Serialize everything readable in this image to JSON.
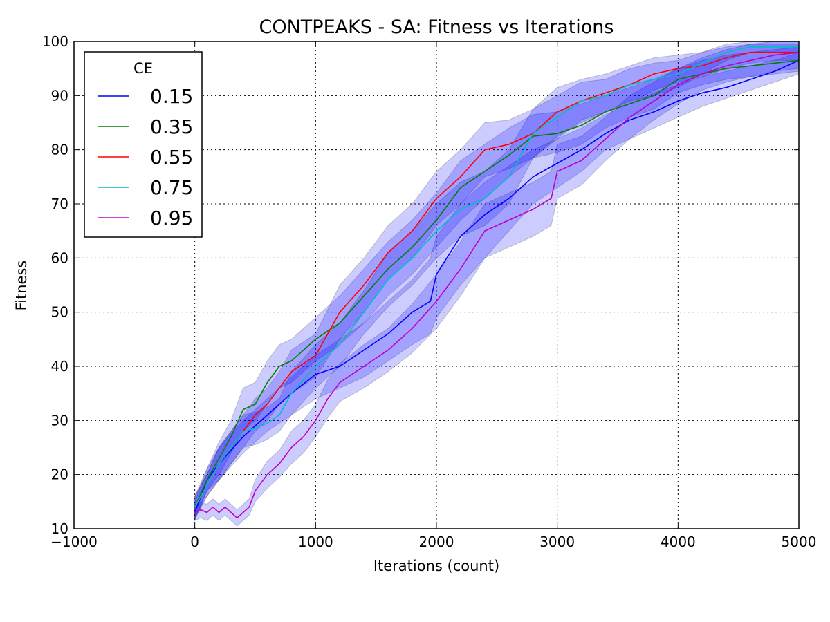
{
  "chart_data": {
    "type": "line",
    "title": "CONTPEAKS - SA: Fitness vs Iterations",
    "xlabel": "Iterations (count)",
    "ylabel": "Fitness",
    "xlim": [
      -1000,
      5000
    ],
    "ylim": [
      10,
      100
    ],
    "xticks": [
      -1000,
      0,
      1000,
      2000,
      3000,
      4000,
      5000
    ],
    "xtick_labels": [
      "−1000",
      "0",
      "1000",
      "2000",
      "3000",
      "4000",
      "5000"
    ],
    "yticks": [
      10,
      20,
      30,
      40,
      50,
      60,
      70,
      80,
      90,
      100
    ],
    "ytick_labels": [
      "10",
      "20",
      "30",
      "40",
      "50",
      "60",
      "70",
      "80",
      "90",
      "100"
    ],
    "grid": true,
    "legend": {
      "title": "CE",
      "position": "top-left"
    },
    "band_color": "#0000ff",
    "series": [
      {
        "name": "0.15",
        "color": "#0000ff",
        "x": [
          0,
          100,
          200,
          400,
          600,
          800,
          1000,
          1200,
          1400,
          1600,
          1800,
          1950,
          2000,
          2200,
          2400,
          2600,
          2800,
          3000,
          3200,
          3400,
          3600,
          3800,
          4000,
          4200,
          4400,
          4600,
          4800,
          5000
        ],
        "y": [
          13,
          19,
          22,
          27,
          31,
          35,
          38.5,
          40,
          43,
          46,
          50,
          52,
          57,
          64,
          68,
          71,
          75,
          77.5,
          80,
          83,
          85.5,
          87,
          89,
          90.5,
          91.5,
          93,
          94.5,
          96.5
        ],
        "lower": [
          11.5,
          17,
          19,
          24,
          28,
          31,
          34,
          36,
          38,
          41,
          44,
          46,
          49,
          55,
          60,
          65,
          70,
          73,
          76,
          80,
          82,
          84,
          86,
          88,
          89.5,
          91,
          92.5,
          94
        ],
        "upper": [
          15,
          21,
          25,
          30,
          34,
          38,
          42,
          45,
          48,
          52,
          56,
          60,
          64,
          70,
          74,
          77,
          80,
          82,
          84,
          86.5,
          88.5,
          90.5,
          92,
          93.5,
          94.5,
          95.5,
          96.5,
          98
        ]
      },
      {
        "name": "0.35",
        "color": "#008000",
        "x": [
          0,
          100,
          200,
          300,
          400,
          500,
          600,
          700,
          800,
          1000,
          1200,
          1400,
          1600,
          1800,
          2000,
          2200,
          2400,
          2600,
          2800,
          3000,
          3200,
          3400,
          3600,
          3800,
          4000,
          4200,
          4400,
          4600,
          4800,
          5000
        ],
        "y": [
          14,
          19,
          23,
          27,
          32,
          33,
          37,
          40,
          41,
          45,
          48,
          53,
          58,
          62,
          67,
          73,
          76,
          79,
          82.5,
          83,
          84.5,
          87,
          88.5,
          90,
          93,
          94,
          95,
          95.5,
          96,
          96.5
        ],
        "lower": [
          12,
          17,
          20,
          24,
          28,
          30,
          33,
          36,
          37,
          41,
          44,
          48,
          53,
          57,
          62,
          67,
          71,
          75,
          78.5,
          79.5,
          81,
          84,
          86,
          87.5,
          90.5,
          92,
          93,
          93.5,
          94,
          94.5
        ],
        "upper": [
          16,
          21,
          26,
          30,
          36,
          37,
          41,
          44,
          45,
          49,
          53,
          58,
          63,
          67,
          72,
          78,
          81,
          84,
          86.5,
          87,
          88.5,
          90,
          91.5,
          93,
          95,
          96.5,
          97.5,
          98,
          98.5,
          99
        ]
      },
      {
        "name": "0.55",
        "color": "#ff0000",
        "x": [
          0,
          100,
          200,
          300,
          400,
          500,
          600,
          700,
          800,
          1000,
          1200,
          1400,
          1600,
          1800,
          2000,
          2200,
          2400,
          2600,
          2800,
          3000,
          3200,
          3400,
          3600,
          3800,
          4000,
          4200,
          4400,
          4600,
          4800,
          5000
        ],
        "y": [
          14,
          18,
          22,
          25,
          28,
          31,
          33,
          36,
          39,
          42,
          50,
          55,
          61,
          65,
          71,
          75,
          80,
          81,
          83,
          87,
          89,
          90.5,
          92,
          94,
          95,
          95.5,
          97,
          98,
          98,
          98
        ],
        "lower": [
          12,
          16,
          19,
          22,
          25,
          28,
          30,
          33,
          35,
          38,
          45,
          50,
          56,
          60,
          66,
          70,
          75,
          76.5,
          78.5,
          82.5,
          85,
          87,
          88.5,
          91,
          92.5,
          93.5,
          95,
          96,
          96.5,
          96.5
        ],
        "upper": [
          16,
          20,
          25,
          28,
          31,
          34,
          36,
          39,
          43,
          46,
          55,
          60,
          66,
          70,
          76,
          80,
          85,
          85.5,
          87.5,
          91.5,
          93,
          94,
          95.5,
          97,
          97.5,
          98,
          99,
          99.5,
          99.5,
          99.5
        ]
      },
      {
        "name": "0.75",
        "color": "#00bfbf",
        "x": [
          0,
          100,
          200,
          300,
          400,
          500,
          600,
          700,
          800,
          1000,
          1200,
          1400,
          1600,
          1800,
          2000,
          2200,
          2400,
          2600,
          2800,
          3000,
          3200,
          3400,
          3600,
          3800,
          4000,
          4200,
          4400,
          4600,
          4800,
          5000
        ],
        "y": [
          14,
          18,
          22,
          25,
          28,
          28.5,
          29.5,
          31,
          35,
          40,
          44,
          50,
          56,
          60,
          65,
          69,
          71,
          75,
          83,
          86,
          89,
          90,
          92,
          93,
          94,
          96,
          98,
          99,
          99,
          99
        ],
        "lower": [
          12,
          16,
          19,
          22,
          25,
          25.5,
          26.5,
          28,
          31,
          36,
          40,
          46,
          51,
          55,
          60,
          64,
          66,
          70,
          78.5,
          82,
          85.5,
          87,
          89,
          90,
          91.5,
          94,
          96.5,
          98,
          98,
          98
        ],
        "upper": [
          16,
          20,
          25,
          28,
          31,
          31.5,
          32.5,
          34,
          39,
          44,
          48,
          54,
          61,
          65,
          70,
          74,
          76,
          80,
          87.5,
          90,
          92.5,
          93,
          95,
          96,
          96.5,
          98,
          99.5,
          100,
          100,
          100
        ]
      },
      {
        "name": "0.95",
        "color": "#bf00bf",
        "x": [
          0,
          50,
          100,
          150,
          200,
          250,
          300,
          350,
          400,
          450,
          500,
          600,
          700,
          800,
          900,
          1000,
          1100,
          1200,
          1400,
          1600,
          1800,
          2000,
          2200,
          2400,
          2600,
          2800,
          2950,
          3000,
          3200,
          3400,
          3600,
          3800,
          4000,
          4200,
          4400,
          4600,
          4800,
          5000
        ],
        "y": [
          13,
          13.5,
          13,
          14,
          13,
          14,
          13,
          12,
          13,
          14,
          17,
          20,
          22,
          25,
          27,
          30,
          34,
          37,
          40,
          43,
          47,
          52,
          58,
          65,
          67,
          69,
          71,
          76,
          78,
          82,
          86,
          89,
          92,
          94,
          95.5,
          96.5,
          97.5,
          98
        ],
        "lower": [
          11.5,
          12,
          11.5,
          12.5,
          11.5,
          12.5,
          11.5,
          10.5,
          11.5,
          12.5,
          15,
          17.5,
          19.5,
          22,
          24,
          27,
          30.5,
          33.5,
          36,
          39,
          42.5,
          47,
          53,
          60,
          62,
          64,
          66,
          71,
          73.5,
          78,
          82,
          85.5,
          88.5,
          91,
          92.5,
          93.5,
          94.5,
          95
        ],
        "upper": [
          14.5,
          15,
          14.5,
          15.5,
          14.5,
          15.5,
          14.5,
          13.5,
          14.5,
          15.5,
          19,
          22.5,
          24.5,
          28,
          30,
          33,
          37.5,
          40.5,
          44,
          47,
          51.5,
          57,
          63,
          70,
          72,
          74,
          76,
          81,
          82.5,
          86,
          90,
          92.5,
          95,
          97,
          98.5,
          99.5,
          100,
          100
        ]
      }
    ]
  }
}
